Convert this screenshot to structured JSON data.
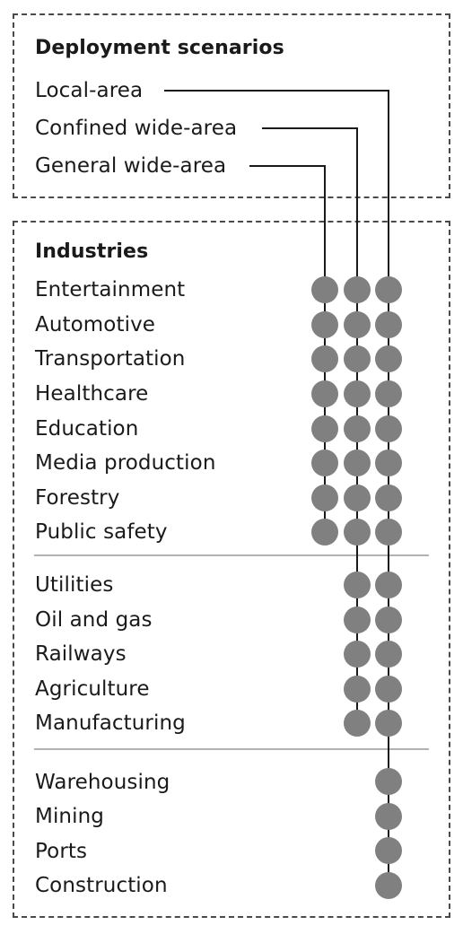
{
  "scenarios": {
    "heading": "Deployment scenarios",
    "items": [
      {
        "label": "Local-area"
      },
      {
        "label": "Confined wide-area"
      },
      {
        "label": "General wide-area"
      }
    ]
  },
  "industries": {
    "heading": "Industries",
    "groups": [
      {
        "items": [
          "Entertainment",
          "Automotive",
          "Transportation",
          "Healthcare",
          "Education",
          "Media production",
          "Forestry",
          "Public safety"
        ],
        "scenarios": [
          "General wide-area",
          "Confined wide-area",
          "Local-area"
        ]
      },
      {
        "items": [
          "Utilities",
          "Oil and gas",
          "Railways",
          "Agriculture",
          "Manufacturing"
        ],
        "scenarios": [
          "Confined wide-area",
          "Local-area"
        ]
      },
      {
        "items": [
          "Warehousing",
          "Mining",
          "Ports",
          "Construction"
        ],
        "scenarios": [
          "Local-area"
        ]
      }
    ]
  },
  "colors": {
    "dot": "#808080",
    "line": "#1a1a1a",
    "border": "#4a4a4a",
    "separator": "#b3b3b3"
  }
}
